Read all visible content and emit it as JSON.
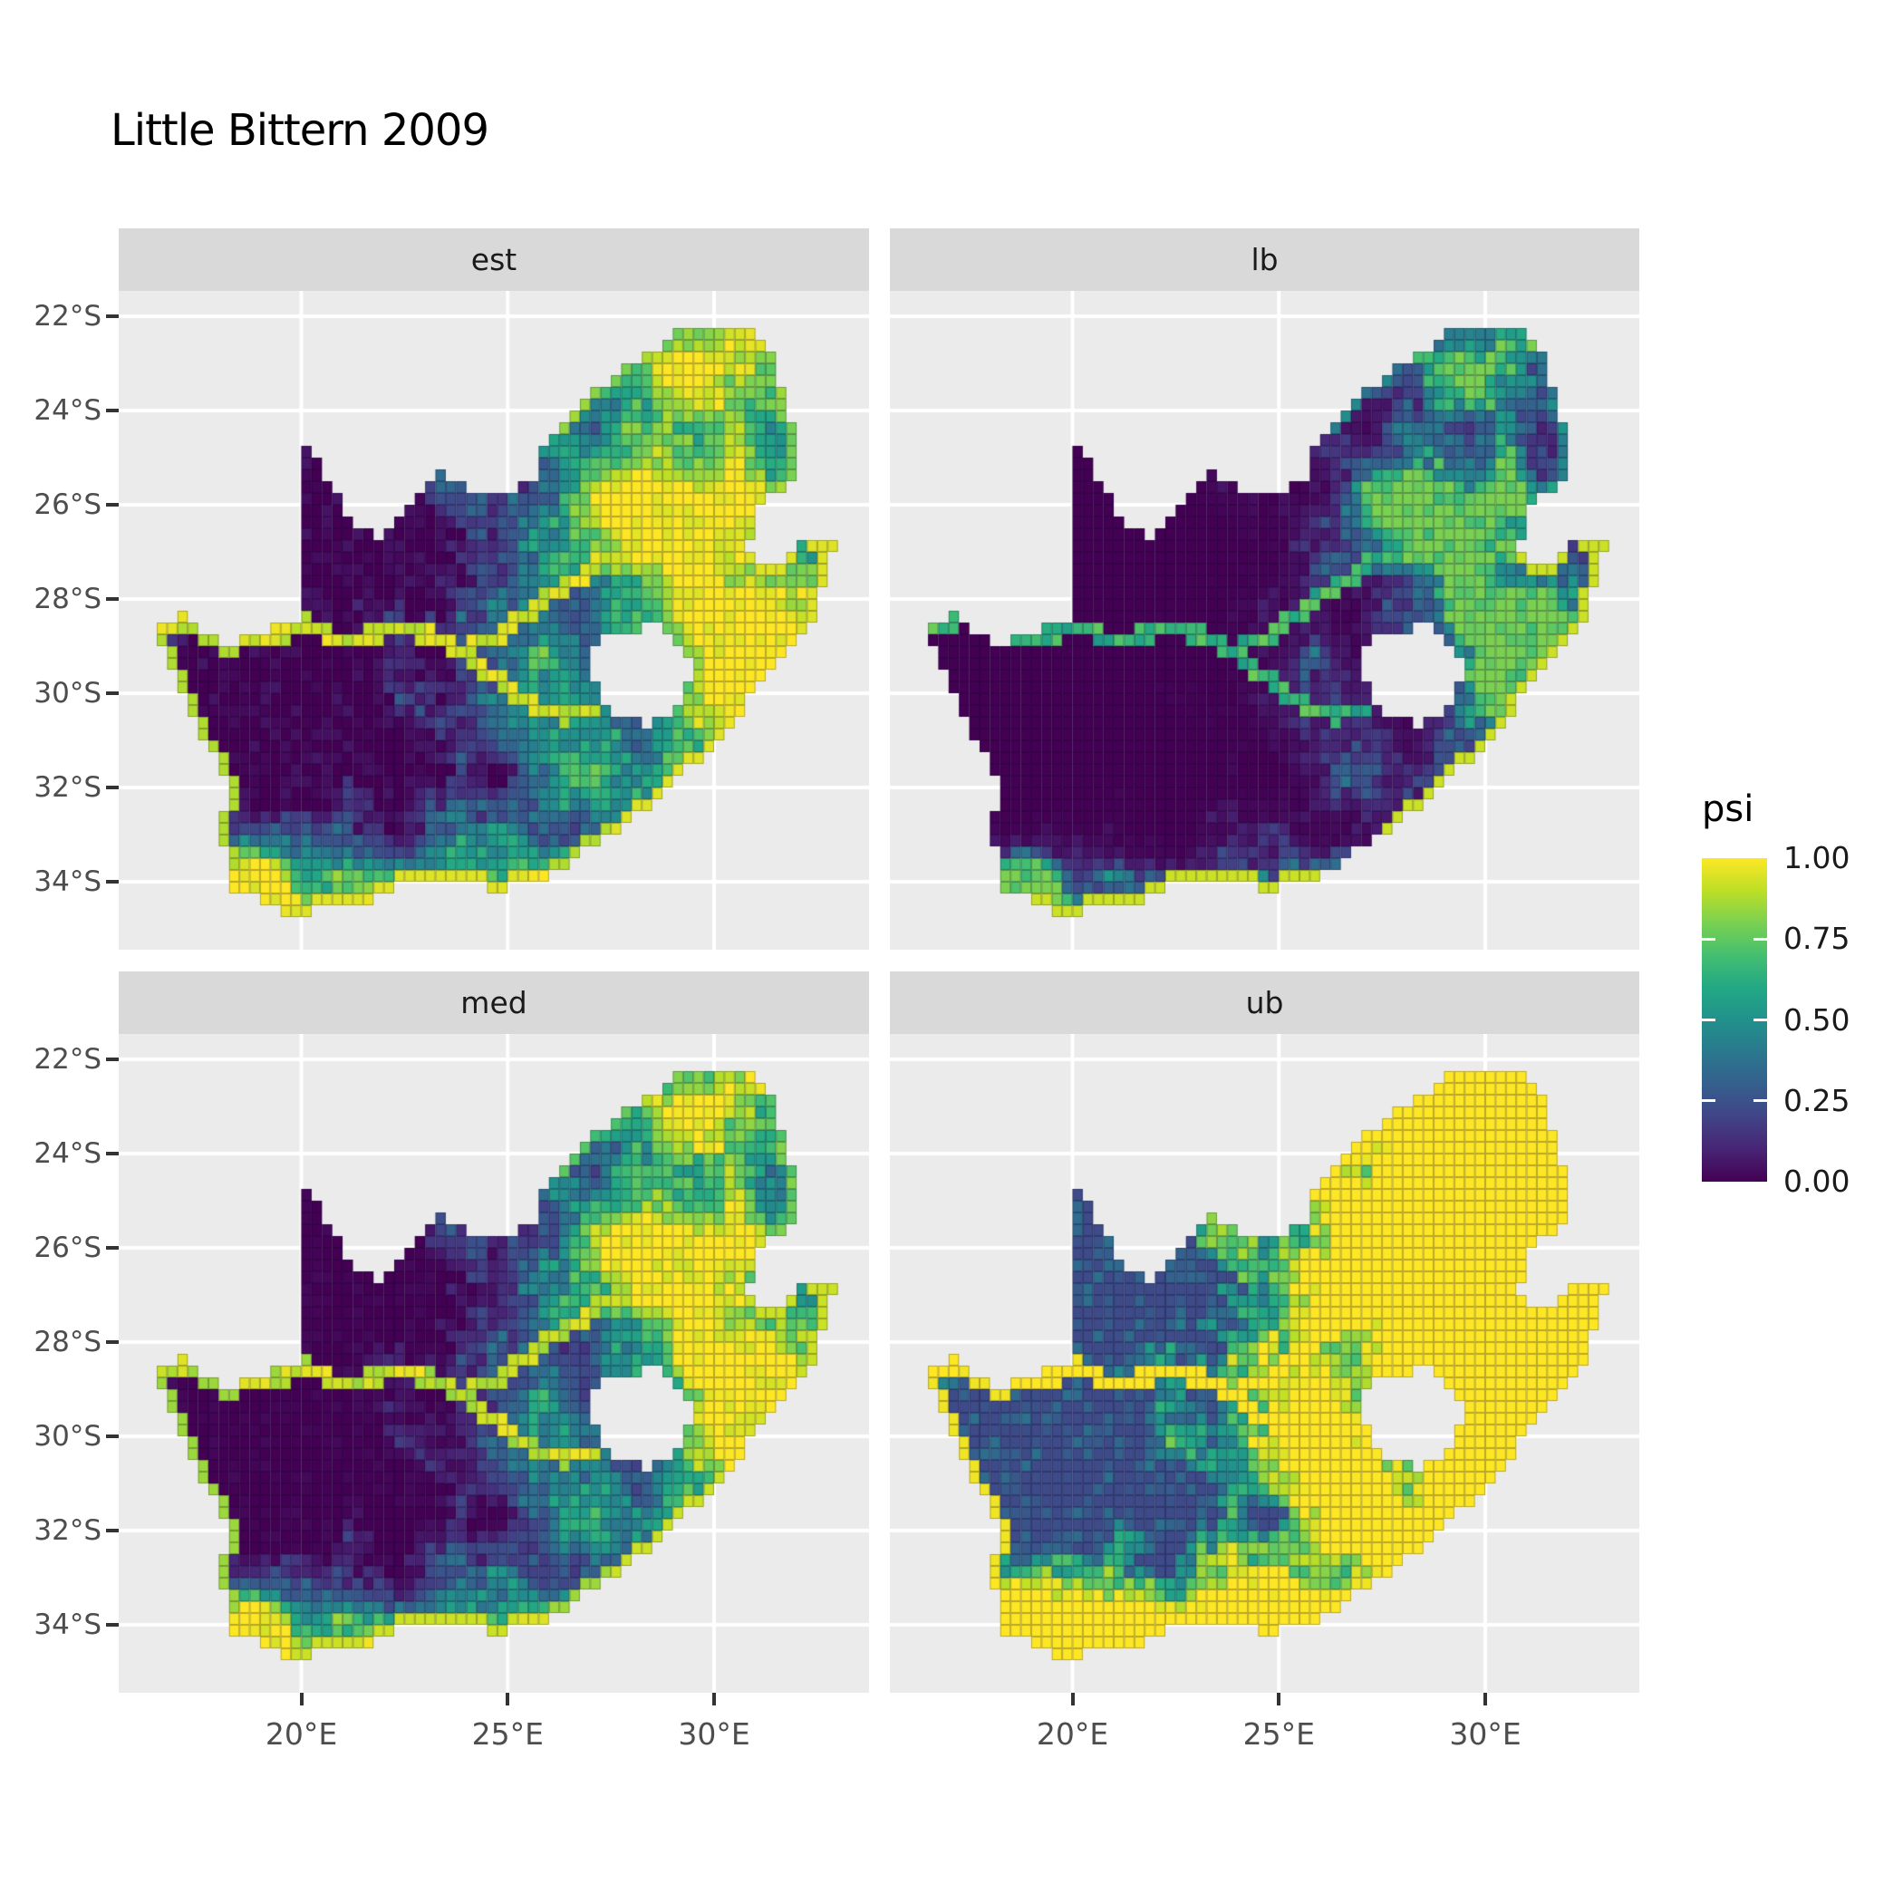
{
  "title": "Little Bittern 2009",
  "facets": [
    {
      "key": "est",
      "label": "est"
    },
    {
      "key": "lb",
      "label": "lb"
    },
    {
      "key": "med",
      "label": "med"
    },
    {
      "key": "ub",
      "label": "ub"
    }
  ],
  "axes": {
    "x": {
      "tick_labels": [
        "20°E",
        "25°E",
        "30°E"
      ],
      "tick_values": [
        20,
        25,
        30
      ]
    },
    "y": {
      "tick_labels": [
        "22°S",
        "24°S",
        "26°S",
        "28°S",
        "30°S",
        "32°S",
        "34°S"
      ],
      "tick_values": [
        -22,
        -24,
        -26,
        -28,
        -30,
        -32,
        -34
      ]
    }
  },
  "legend": {
    "title": "psi",
    "tick_labels": [
      "1.00",
      "0.75",
      "0.50",
      "0.25",
      "0.00"
    ],
    "tick_values": [
      1.0,
      0.75,
      0.5,
      0.25,
      0.0
    ]
  },
  "colors": {
    "background": "#FFFFFF",
    "panel_bg": "#EBEBEB",
    "strip_bg": "#D9D9D9",
    "gridline": "#FFFFFF",
    "axis_text": "#4D4D4D",
    "tick_mark": "#333333",
    "text": "#1A1A1A",
    "viridis_stops": [
      "#440154",
      "#482475",
      "#414487",
      "#355F8D",
      "#2A788E",
      "#21918C",
      "#22A884",
      "#44BF70",
      "#7AD151",
      "#BDDF26",
      "#FDE725"
    ]
  },
  "chart_data": {
    "type": "heatmap",
    "subtype": "faceted quarter-degree raster occupancy map of South Africa (ggplot2 facet_wrap style)",
    "title": "Little Bittern 2009",
    "facet_variable_values": [
      "est",
      "lb",
      "med",
      "ub"
    ],
    "fill_variable": "psi",
    "fill_range": [
      0,
      1
    ],
    "legend_breaks": [
      0.0,
      0.25,
      0.5,
      0.75,
      1.0
    ],
    "x_axis_breaks_lon": [
      20,
      25,
      30
    ],
    "y_axis_breaks_lat": [
      -22,
      -24,
      -26,
      -28,
      -30,
      -32,
      -34
    ],
    "x_range_lon": [
      15.6,
      33.75
    ],
    "y_range_lat": [
      -35.4,
      -21.45
    ],
    "cell_size_deg": 0.25,
    "region": "South Africa (Lesotho shown as hole; Eswatini notch on east)",
    "facet_summaries": {
      "est": "Estimated psi: high (0.8-1.0) over eastern highveld, Limpopo, KZN escarpment, along the Orange and Vaal rivers and the south & west coastlines; near 0 over the Kalahari, Bushmanland and central Karoo.",
      "lb": "Lower bound: near 0 nearly everywhere; moderate (0.3-0.6) green band over the Gauteng/Mpumalanga highveld and KZN midlands; thin bright line along the southeast and south coasts; rivers faint teal.",
      "med": "Median: same spatial pattern as est but slightly darker overall; yellow highveld blob, yellow rivers, yellow south/west coastal rim.",
      "ub": "Upper bound: widespread yellow (psi near 1) across the eastern half, the entire coastline and river corridors; dark purple only over the arid northwest (Kalahari / Bushmanland) interior patches."
    },
    "geography": {
      "outline": [
        [
          16.45,
          -28.6
        ],
        [
          16.8,
          -28.45
        ],
        [
          17.1,
          -28.35
        ],
        [
          17.4,
          -28.45
        ],
        [
          17.7,
          -28.72
        ],
        [
          18.1,
          -28.9
        ],
        [
          18.6,
          -28.86
        ],
        [
          19.1,
          -28.72
        ],
        [
          19.6,
          -28.52
        ],
        [
          19.98,
          -28.45
        ],
        [
          19.98,
          -24.75
        ],
        [
          20.35,
          -25.05
        ],
        [
          20.65,
          -25.45
        ],
        [
          20.95,
          -26.0
        ],
        [
          21.35,
          -26.4
        ],
        [
          21.9,
          -26.66
        ],
        [
          22.3,
          -26.36
        ],
        [
          22.65,
          -26.0
        ],
        [
          23.0,
          -25.6
        ],
        [
          23.45,
          -25.3
        ],
        [
          23.9,
          -25.6
        ],
        [
          24.4,
          -25.76
        ],
        [
          24.85,
          -25.7
        ],
        [
          25.35,
          -25.6
        ],
        [
          25.6,
          -25.45
        ],
        [
          25.9,
          -24.75
        ],
        [
          26.35,
          -24.3
        ],
        [
          26.85,
          -23.75
        ],
        [
          27.35,
          -23.4
        ],
        [
          27.95,
          -23.05
        ],
        [
          28.55,
          -22.72
        ],
        [
          29.05,
          -22.28
        ],
        [
          29.45,
          -22.12
        ],
        [
          30.0,
          -22.2
        ],
        [
          30.6,
          -22.28
        ],
        [
          31.1,
          -22.35
        ],
        [
          31.35,
          -22.7
        ],
        [
          31.55,
          -23.4
        ],
        [
          31.75,
          -23.95
        ],
        [
          31.95,
          -24.5
        ],
        [
          32.02,
          -25.1
        ],
        [
          31.98,
          -25.46
        ],
        [
          31.6,
          -25.65
        ],
        [
          31.3,
          -25.78
        ],
        [
          31.1,
          -26.1
        ],
        [
          30.95,
          -26.5
        ],
        [
          30.8,
          -26.85
        ],
        [
          30.9,
          -27.2
        ],
        [
          31.15,
          -27.35
        ],
        [
          31.5,
          -27.3
        ],
        [
          31.95,
          -27.05
        ],
        [
          32.13,
          -26.84
        ],
        [
          32.55,
          -26.85
        ],
        [
          32.89,
          -26.86
        ],
        [
          32.6,
          -27.9
        ],
        [
          32.4,
          -28.5
        ],
        [
          32.0,
          -28.95
        ],
        [
          31.4,
          -29.5
        ],
        [
          31.0,
          -29.9
        ],
        [
          30.6,
          -30.5
        ],
        [
          30.2,
          -30.95
        ],
        [
          29.6,
          -31.4
        ],
        [
          29.2,
          -31.75
        ],
        [
          28.6,
          -32.25
        ],
        [
          28.0,
          -32.7
        ],
        [
          27.4,
          -33.0
        ],
        [
          26.8,
          -33.32
        ],
        [
          26.2,
          -33.76
        ],
        [
          25.7,
          -33.95
        ],
        [
          25.35,
          -34.02
        ],
        [
          24.85,
          -34.2
        ],
        [
          24.2,
          -34.06
        ],
        [
          23.6,
          -34.1
        ],
        [
          23.0,
          -34.1
        ],
        [
          22.5,
          -34.06
        ],
        [
          22.15,
          -34.22
        ],
        [
          21.7,
          -34.42
        ],
        [
          21.1,
          -34.42
        ],
        [
          20.5,
          -34.46
        ],
        [
          20.0,
          -34.82
        ],
        [
          19.55,
          -34.62
        ],
        [
          19.3,
          -34.46
        ],
        [
          18.9,
          -34.4
        ],
        [
          18.76,
          -34.1
        ],
        [
          18.45,
          -34.36
        ],
        [
          18.3,
          -33.95
        ],
        [
          18.26,
          -33.5
        ],
        [
          18.0,
          -33.1
        ],
        [
          17.86,
          -32.8
        ],
        [
          18.2,
          -32.4
        ],
        [
          18.26,
          -31.9
        ],
        [
          17.9,
          -31.4
        ],
        [
          17.56,
          -30.9
        ],
        [
          17.26,
          -30.4
        ],
        [
          17.0,
          -29.85
        ],
        [
          16.86,
          -29.35
        ],
        [
          16.6,
          -28.95
        ]
      ],
      "lesotho_hole": [
        [
          27.0,
          -29.2
        ],
        [
          27.4,
          -28.85
        ],
        [
          27.75,
          -28.7
        ],
        [
          28.2,
          -28.64
        ],
        [
          28.66,
          -28.6
        ],
        [
          29.1,
          -28.9
        ],
        [
          29.36,
          -29.25
        ],
        [
          29.46,
          -29.65
        ],
        [
          29.25,
          -30.05
        ],
        [
          28.9,
          -30.4
        ],
        [
          28.4,
          -30.66
        ],
        [
          27.9,
          -30.56
        ],
        [
          27.55,
          -30.4
        ],
        [
          27.25,
          -30.05
        ],
        [
          27.05,
          -29.64
        ]
      ],
      "rivers": [
        {
          "name": "Orange",
          "value": 0.93,
          "pts": [
            [
              16.5,
              -28.6
            ],
            [
              17.3,
              -28.42
            ],
            [
              18.0,
              -28.52
            ],
            [
              18.7,
              -28.82
            ],
            [
              19.5,
              -28.72
            ],
            [
              20.3,
              -28.66
            ],
            [
              21.0,
              -28.86
            ],
            [
              21.8,
              -28.76
            ],
            [
              22.5,
              -28.56
            ],
            [
              23.3,
              -28.86
            ],
            [
              24.0,
              -29.22
            ],
            [
              24.6,
              -29.6
            ],
            [
              25.2,
              -30.0
            ],
            [
              25.8,
              -30.36
            ],
            [
              26.4,
              -30.46
            ],
            [
              27.0,
              -30.4
            ]
          ]
        },
        {
          "name": "Vaal",
          "value": 0.93,
          "pts": [
            [
              24.2,
              -29.0
            ],
            [
              24.9,
              -28.76
            ],
            [
              25.5,
              -28.3
            ],
            [
              26.1,
              -27.9
            ],
            [
              26.7,
              -27.56
            ],
            [
              27.3,
              -27.2
            ],
            [
              27.9,
              -26.96
            ],
            [
              28.6,
              -26.86
            ],
            [
              29.2,
              -26.76
            ]
          ]
        },
        {
          "name": "Limpopo",
          "value": 0.8,
          "pts": [
            [
              26.4,
              -24.3
            ],
            [
              27.0,
              -23.6
            ],
            [
              27.8,
              -23.05
            ],
            [
              28.6,
              -22.7
            ],
            [
              29.4,
              -22.2
            ],
            [
              30.3,
              -22.3
            ],
            [
              31.1,
              -22.4
            ],
            [
              31.5,
              -23.3
            ],
            [
              31.8,
              -24.2
            ],
            [
              31.95,
              -25.1
            ]
          ]
        }
      ]
    },
    "field_model": {
      "note": "procedural approximation of the raster psi surface",
      "base_offset": 0.16,
      "east_gradient": {
        "lon_from": 21,
        "lon_to": 31,
        "weight": 0.5
      },
      "south_coast_band": {
        "lat_start": -33.0,
        "falloff_deg": 1.6,
        "weight": 0.7
      },
      "regions": [
        {
          "name": "highveld_wetlands",
          "cx": 28.6,
          "cy": -26.4,
          "sx": 2.0,
          "sy": 1.4,
          "w": 0.8
        },
        {
          "name": "kzn_midlands",
          "cx": 30.5,
          "cy": -29.3,
          "sx": 1.4,
          "sy": 1.3,
          "w": 0.6
        },
        {
          "name": "limpopo_north",
          "cx": 29.2,
          "cy": -23.2,
          "sx": 1.8,
          "sy": 1.0,
          "w": 0.35
        },
        {
          "name": "sw_cape",
          "cx": 18.8,
          "cy": -33.8,
          "sx": 0.9,
          "sy": 0.8,
          "w": 0.65
        },
        {
          "name": "kalahari_arid",
          "cx": 20.8,
          "cy": -26.8,
          "sx": 2.6,
          "sy": 1.9,
          "w": -0.65
        },
        {
          "name": "bushmanland_arid",
          "cx": 19.4,
          "cy": -30.2,
          "sx": 2.0,
          "sy": 1.6,
          "w": -0.5
        },
        {
          "name": "karoo_arid",
          "cx": 22.8,
          "cy": -31.4,
          "sx": 2.6,
          "sy": 1.6,
          "w": -0.3
        }
      ],
      "noise": {
        "octave1_scale": 0.85,
        "octave1_w": 0.5,
        "octave2_scale": 2.4,
        "octave2_w": 0.3,
        "cell_w": 0.2,
        "amplitude": 0.95,
        "facet_jitter": 0.12
      },
      "river_halfwidth_deg": 0.17,
      "facet_transforms": {
        "est": {
          "pre_pow": 1.0,
          "gain": 1.0,
          "offset": 0.0,
          "post_pow": 1.0,
          "coast_floor": 0.88,
          "se_coast_floor": 0.95
        },
        "lb": {
          "pre_pow": 3.0,
          "gain": 0.8,
          "offset": 0.0,
          "post_pow": 1.0,
          "coast_floor": 0.0,
          "se_coast_floor": 0.92
        },
        "med": {
          "pre_pow": 1.3,
          "gain": 1.0,
          "offset": 0.0,
          "post_pow": 1.0,
          "coast_floor": 0.85,
          "se_coast_floor": 0.92
        },
        "ub": {
          "pre_pow": 1.0,
          "gain": 2.0,
          "offset": 0.12,
          "post_pow": 0.7,
          "coast_floor": 0.98,
          "se_coast_floor": 1.0
        }
      }
    }
  }
}
